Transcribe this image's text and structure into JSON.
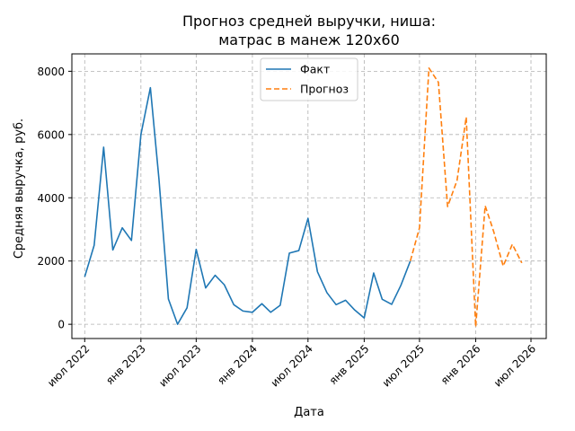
{
  "chart_data": {
    "type": "line",
    "title_lines": [
      "Прогноз средней выручки, ниша:",
      "матрас в манеж 120х60"
    ],
    "xlabel": "Дата",
    "ylabel": "Средняя выручка, руб.",
    "x_range": [
      "2022-05-20",
      "2026-08-20"
    ],
    "ylim": [
      -450,
      8550
    ],
    "y_ticks": [
      0,
      2000,
      4000,
      6000,
      8000
    ],
    "x_ticks": [
      {
        "date": "2022-07-01",
        "label": "июл 2022"
      },
      {
        "date": "2023-01-01",
        "label": "янв 2023"
      },
      {
        "date": "2023-07-01",
        "label": "июл 2023"
      },
      {
        "date": "2024-01-01",
        "label": "янв 2024"
      },
      {
        "date": "2024-07-01",
        "label": "июл 2024"
      },
      {
        "date": "2025-01-01",
        "label": "янв 2025"
      },
      {
        "date": "2025-07-01",
        "label": "июл 2025"
      },
      {
        "date": "2026-01-01",
        "label": "янв 2026"
      },
      {
        "date": "2026-07-01",
        "label": "июл 2026"
      }
    ],
    "grid": true,
    "legend_position": "top-center",
    "series": [
      {
        "name": "Факт",
        "color": "#1f77b4",
        "style": "solid",
        "points": [
          [
            "2022-07-01",
            1500
          ],
          [
            "2022-08-01",
            2500
          ],
          [
            "2022-09-01",
            5600
          ],
          [
            "2022-10-01",
            2350
          ],
          [
            "2022-11-01",
            3050
          ],
          [
            "2022-12-01",
            2650
          ],
          [
            "2023-01-01",
            6000
          ],
          [
            "2023-02-01",
            7480
          ],
          [
            "2023-03-01",
            4600
          ],
          [
            "2023-04-01",
            800
          ],
          [
            "2023-05-01",
            0
          ],
          [
            "2023-06-01",
            520
          ],
          [
            "2023-07-01",
            2370
          ],
          [
            "2023-08-01",
            1150
          ],
          [
            "2023-09-01",
            1550
          ],
          [
            "2023-10-01",
            1250
          ],
          [
            "2023-11-01",
            620
          ],
          [
            "2023-12-01",
            420
          ],
          [
            "2024-01-01",
            380
          ],
          [
            "2024-02-01",
            650
          ],
          [
            "2024-03-01",
            380
          ],
          [
            "2024-04-01",
            600
          ],
          [
            "2024-05-01",
            2250
          ],
          [
            "2024-06-01",
            2330
          ],
          [
            "2024-07-01",
            3350
          ],
          [
            "2024-08-01",
            1660
          ],
          [
            "2024-09-01",
            1000
          ],
          [
            "2024-10-01",
            620
          ],
          [
            "2024-11-01",
            760
          ],
          [
            "2024-12-01",
            450
          ],
          [
            "2025-01-01",
            200
          ],
          [
            "2025-02-01",
            1620
          ],
          [
            "2025-03-01",
            790
          ],
          [
            "2025-04-01",
            630
          ],
          [
            "2025-05-01",
            1230
          ],
          [
            "2025-06-01",
            2000
          ]
        ]
      },
      {
        "name": "Прогноз",
        "color": "#ff7f0e",
        "style": "dashed",
        "points": [
          [
            "2025-06-01",
            2000
          ],
          [
            "2025-07-01",
            3050
          ],
          [
            "2025-08-01",
            8100
          ],
          [
            "2025-09-01",
            7650
          ],
          [
            "2025-10-01",
            3720
          ],
          [
            "2025-11-01",
            4550
          ],
          [
            "2025-12-01",
            6550
          ],
          [
            "2026-01-01",
            -80
          ],
          [
            "2026-02-01",
            3750
          ],
          [
            "2026-03-01",
            2930
          ],
          [
            "2026-04-01",
            1840
          ],
          [
            "2026-05-01",
            2530
          ],
          [
            "2026-06-01",
            1940
          ]
        ]
      }
    ]
  }
}
